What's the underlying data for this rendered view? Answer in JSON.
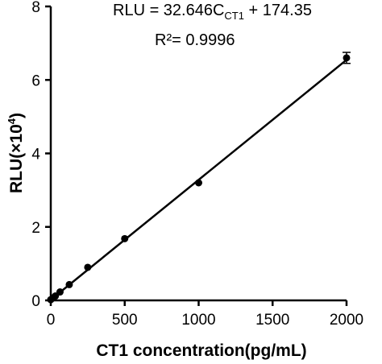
{
  "chart_data": {
    "type": "scatter",
    "xlabel": "CT1 concentration(pg/mL)",
    "ylabel": "RLU",
    "ylabel_unit_prefix": "(×10",
    "ylabel_unit_exp": "4",
    "ylabel_unit_suffix": ")",
    "xlim": [
      0,
      2000
    ],
    "ylim": [
      0,
      8
    ],
    "xticks": [
      "0",
      "500",
      "1000",
      "1500",
      "2000"
    ],
    "yticks": [
      "0",
      "2",
      "4",
      "6",
      "8"
    ],
    "grid": false,
    "equation": {
      "prefix": "RLU = 32.646C",
      "subscript": "CT1",
      "suffix": " + 174.35",
      "r2": "R²= 0.9996"
    },
    "points": [
      {
        "x": 0,
        "y": 0.02
      },
      {
        "x": 15.6,
        "y": 0.07
      },
      {
        "x": 31.25,
        "y": 0.12
      },
      {
        "x": 62.5,
        "y": 0.23
      },
      {
        "x": 125,
        "y": 0.43
      },
      {
        "x": 250,
        "y": 0.9
      },
      {
        "x": 500,
        "y": 1.68
      },
      {
        "x": 1000,
        "y": 3.2
      },
      {
        "x": 2000,
        "y": 6.6
      }
    ],
    "error_bars": [
      {
        "x": 2000,
        "low": 6.45,
        "high": 6.75
      }
    ],
    "fit_line": {
      "x_start": 0,
      "y_start": 0.017,
      "x_end": 2000,
      "y_end": 6.546
    }
  }
}
